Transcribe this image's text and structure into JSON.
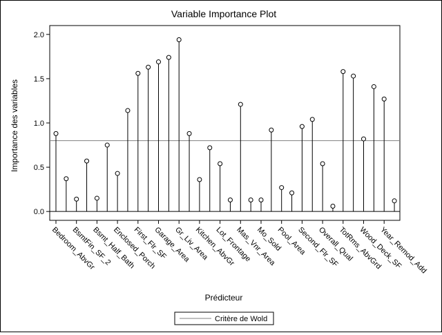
{
  "chart_data": {
    "type": "lollipop",
    "title": "Variable Importance Plot",
    "xlabel": "Prédicteur",
    "ylabel": "Importance des variables",
    "ylim": [
      -0.1,
      2.1
    ],
    "yticks": [
      "0.0",
      "0.5",
      "1.0",
      "1.5",
      "2.0"
    ],
    "reference_line": {
      "value": 0.8,
      "label": "Critère de Wold"
    },
    "legend_position": "bottom-center",
    "grid": false,
    "predictors": [
      {
        "name": "Bedroom_AbvGr",
        "value": 0.88,
        "labeled": true
      },
      {
        "name": "",
        "value": 0.37,
        "labeled": false
      },
      {
        "name": "BsmtFin_SF_2",
        "value": 0.14,
        "labeled": true
      },
      {
        "name": "",
        "value": 0.57,
        "labeled": false
      },
      {
        "name": "Bsmt_Half_Bath",
        "value": 0.15,
        "labeled": true
      },
      {
        "name": "",
        "value": 0.75,
        "labeled": false
      },
      {
        "name": "Enclosed_Porch",
        "value": 0.43,
        "labeled": true
      },
      {
        "name": "",
        "value": 1.14,
        "labeled": false
      },
      {
        "name": "First_Flr_SF",
        "value": 1.56,
        "labeled": true
      },
      {
        "name": "",
        "value": 1.63,
        "labeled": false
      },
      {
        "name": "Garage_Area",
        "value": 1.69,
        "labeled": true
      },
      {
        "name": "",
        "value": 1.74,
        "labeled": false
      },
      {
        "name": "Gr_Liv_Area",
        "value": 1.94,
        "labeled": true
      },
      {
        "name": "",
        "value": 0.88,
        "labeled": false
      },
      {
        "name": "Kitchen_AbvGr",
        "value": 0.36,
        "labeled": true
      },
      {
        "name": "",
        "value": 0.72,
        "labeled": false
      },
      {
        "name": "Lot_Frontage",
        "value": 0.54,
        "labeled": true
      },
      {
        "name": "",
        "value": 0.13,
        "labeled": false
      },
      {
        "name": "Mas_Vnr_Area",
        "value": 1.21,
        "labeled": true
      },
      {
        "name": "",
        "value": 0.13,
        "labeled": false
      },
      {
        "name": "Mo_Sold",
        "value": 0.13,
        "labeled": true
      },
      {
        "name": "",
        "value": 0.92,
        "labeled": false
      },
      {
        "name": "Pool_Area",
        "value": 0.27,
        "labeled": true
      },
      {
        "name": "",
        "value": 0.21,
        "labeled": false
      },
      {
        "name": "Second_Flr_SF",
        "value": 0.96,
        "labeled": true
      },
      {
        "name": "",
        "value": 1.04,
        "labeled": false
      },
      {
        "name": "Overall_Qual",
        "value": 0.54,
        "labeled": true
      },
      {
        "name": "",
        "value": 0.06,
        "labeled": false
      },
      {
        "name": "TotRms_AbvGrd",
        "value": 1.58,
        "labeled": true
      },
      {
        "name": "",
        "value": 1.53,
        "labeled": false
      },
      {
        "name": "Wood_Deck_SF",
        "value": 0.82,
        "labeled": true
      },
      {
        "name": "",
        "value": 1.41,
        "labeled": false
      },
      {
        "name": "Year_Remod_Add",
        "value": 1.27,
        "labeled": true
      },
      {
        "name": "",
        "value": 0.12,
        "labeled": false
      }
    ]
  }
}
